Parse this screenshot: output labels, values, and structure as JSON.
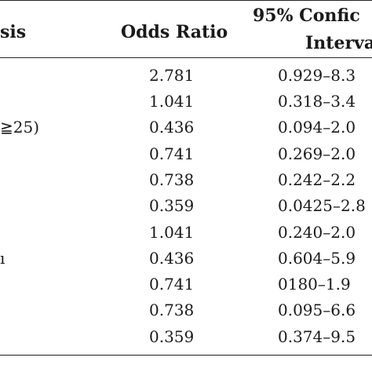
{
  "table": {
    "header": {
      "col_analysis": "sis",
      "col_odds_ratio": "Odds Ratio",
      "col_ci_line1": "95% Confic",
      "col_ci_line2": "Interva"
    },
    "rows": [
      {
        "label": "",
        "odds_ratio": "2.781",
        "ci": "0.929–8.3"
      },
      {
        "label": "",
        "odds_ratio": "1.041",
        "ci": "0.318–3.4"
      },
      {
        "label": "≧25)",
        "odds_ratio": "0.436",
        "ci": "0.094–2.0"
      },
      {
        "label": "",
        "odds_ratio": "0.741",
        "ci": "0.269–2.0"
      },
      {
        "label": "",
        "odds_ratio": "0.738",
        "ci": "0.242–2.2"
      },
      {
        "label": "",
        "odds_ratio": "0.359",
        "ci": "0.0425–2.8"
      },
      {
        "label": "",
        "odds_ratio": "1.041",
        "ci": "0.240–2.0"
      },
      {
        "label": "ı",
        "odds_ratio": "0.436",
        "ci": "0.604–5.9"
      },
      {
        "label": "",
        "odds_ratio": "0.741",
        "ci": "0180–1.9"
      },
      {
        "label": "",
        "odds_ratio": "0.738",
        "ci": "0.095–6.6"
      },
      {
        "label": "",
        "odds_ratio": "0.359",
        "ci": "0.374–9.5"
      }
    ]
  }
}
